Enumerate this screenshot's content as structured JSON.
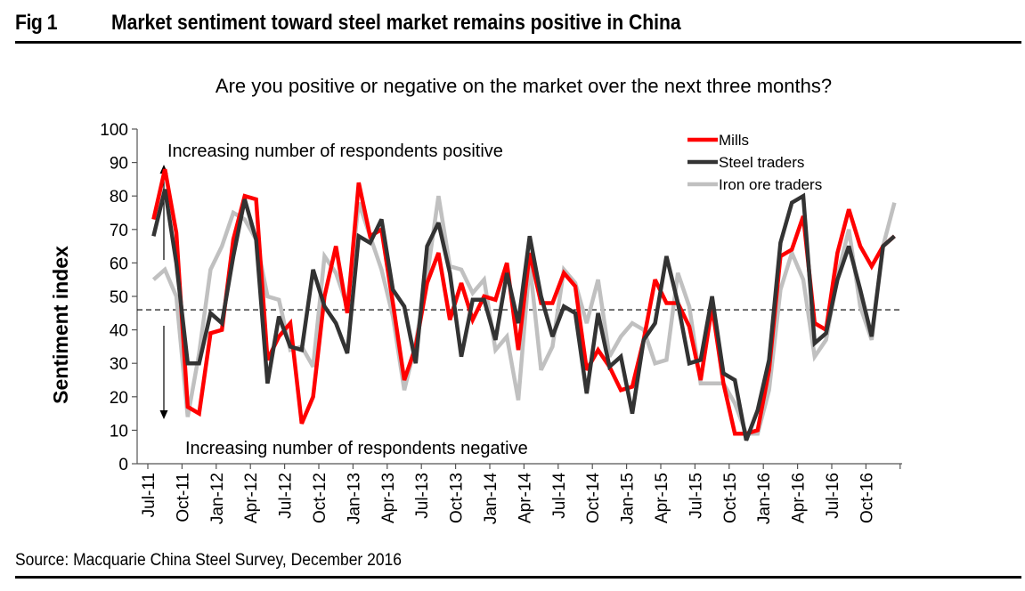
{
  "header": {
    "fig_number": "Fig 1",
    "title": "Market sentiment toward steel market remains positive in China"
  },
  "footer": {
    "source": "Source: Macquarie China Steel Survey, December 2016"
  },
  "chart_data": {
    "type": "line",
    "title": "Are you positive or negative on the market over the next three months?",
    "xlabel": "",
    "ylabel": "Sentiment index",
    "ylim": [
      0,
      100
    ],
    "yticks": [
      0,
      10,
      20,
      30,
      40,
      50,
      60,
      70,
      80,
      90,
      100
    ],
    "xtick_labels": [
      "Jul-11",
      "Oct-11",
      "Jan-12",
      "Apr-12",
      "Jul-12",
      "Oct-12",
      "Jan-13",
      "Apr-13",
      "Jul-13",
      "Oct-13",
      "Jan-14",
      "Apr-14",
      "Jul-14",
      "Oct-14",
      "Jan-15",
      "Apr-15",
      "Jul-15",
      "Oct-15",
      "Jan-16",
      "Apr-16",
      "Jul-16",
      "Oct-16"
    ],
    "x_start": "Jul-11",
    "x_end": "Dec-16",
    "frequency": "monthly",
    "grid": false,
    "legend_position": "top-right",
    "reference_line": {
      "value": 46,
      "style": "dashed"
    },
    "annotations": {
      "positive": "Increasing number of respondents positive",
      "negative": "Increasing number of respondents negative"
    },
    "series": [
      {
        "name": "Mills",
        "color": "#ff0000",
        "values": [
          73,
          88,
          69,
          17,
          15,
          39,
          40,
          67,
          80,
          79,
          31,
          38,
          42,
          12,
          20,
          50,
          65,
          45,
          84,
          68,
          70,
          48,
          25,
          35,
          54,
          63,
          43,
          54,
          43,
          50,
          49,
          60,
          34,
          63,
          48,
          48,
          57,
          53,
          28,
          34,
          29,
          22,
          23,
          37,
          55,
          48,
          48,
          41,
          25,
          47,
          24,
          9,
          9,
          10,
          28,
          62,
          64,
          74,
          42,
          40,
          63,
          76,
          65,
          59,
          65,
          68
        ]
      },
      {
        "name": "Steel traders",
        "color": "#333333",
        "values": [
          68,
          82,
          60,
          30,
          30,
          45,
          42,
          62,
          79,
          67,
          24,
          44,
          35,
          34,
          58,
          47,
          42,
          33,
          68,
          66,
          73,
          52,
          47,
          30,
          65,
          72,
          57,
          32,
          49,
          49,
          37,
          57,
          42,
          68,
          50,
          38,
          47,
          45,
          21,
          45,
          29,
          32,
          15,
          37,
          42,
          62,
          48,
          30,
          31,
          50,
          27,
          25,
          7,
          16,
          31,
          66,
          78,
          80,
          36,
          39,
          55,
          65,
          52,
          38,
          65,
          68
        ]
      },
      {
        "name": "Iron ore traders",
        "color": "#c0c0c0",
        "values": [
          55,
          58,
          50,
          14,
          33,
          58,
          65,
          75,
          73,
          67,
          50,
          49,
          34,
          35,
          29,
          62,
          57,
          47,
          78,
          68,
          58,
          44,
          22,
          36,
          56,
          80,
          59,
          58,
          51,
          55,
          34,
          38,
          19,
          60,
          28,
          35,
          58,
          54,
          42,
          55,
          32,
          38,
          42,
          40,
          30,
          31,
          57,
          47,
          24,
          24,
          24,
          18,
          9,
          9,
          22,
          52,
          63,
          55,
          32,
          37,
          56,
          70,
          47,
          37,
          65,
          78
        ]
      }
    ]
  }
}
